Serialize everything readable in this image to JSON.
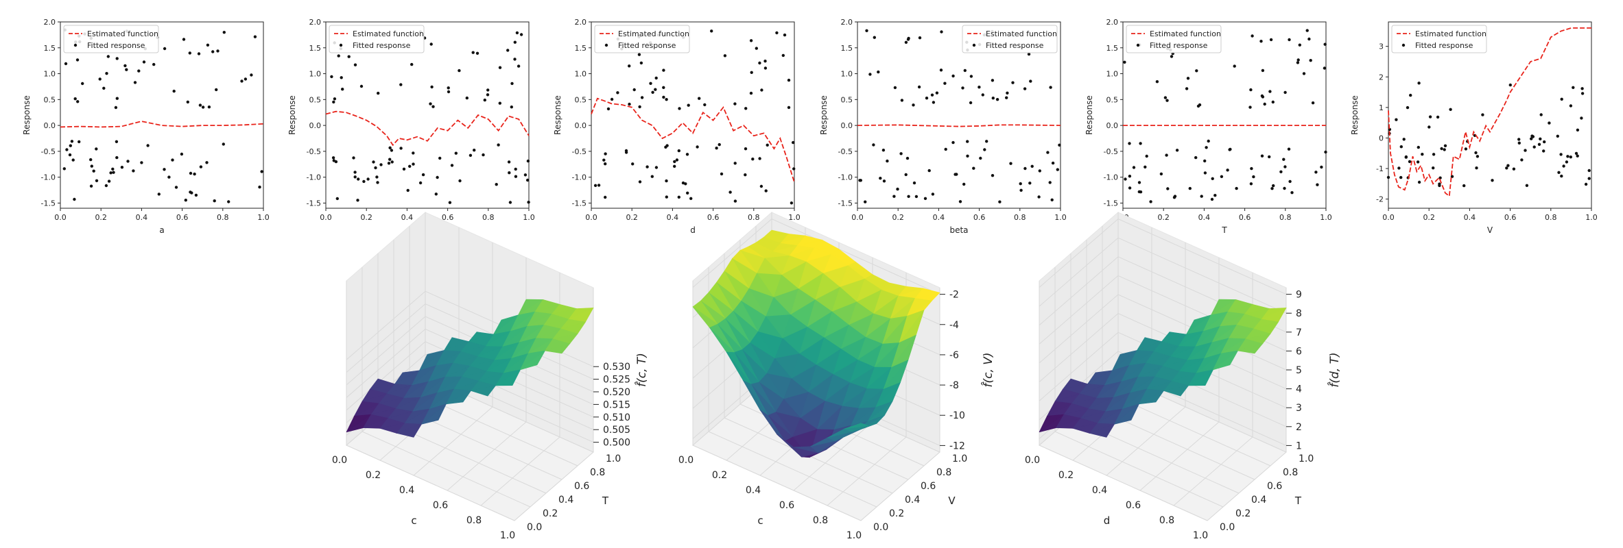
{
  "colors": {
    "estimate": "#e8231a",
    "points": "#111111",
    "axis": "#222222",
    "pane": "#f2f2f2",
    "grid": "#d9d9d9",
    "viridis": [
      "#440154",
      "#46327e",
      "#365c8d",
      "#277f8e",
      "#1fa187",
      "#4ac16d",
      "#a0da39",
      "#fde725"
    ]
  },
  "legend": {
    "estimate_label": "Estimated function",
    "points_label": "Fitted response"
  },
  "chart_data": [
    {
      "type": "scatter",
      "panel": "top-1",
      "xlabel": "a",
      "ylabel": "Response",
      "xlim": [
        0,
        1
      ],
      "ylim": [
        -1.6,
        2.0
      ],
      "legend_loc": "upper left",
      "xticks": [
        "0.0",
        "0.2",
        "0.4",
        "0.6",
        "0.8",
        "1.0"
      ],
      "yticks": [
        "-1.5",
        "-1.0",
        "-0.5",
        "0.0",
        "0.5",
        "1.0",
        "1.5",
        "2.0"
      ],
      "line_x": [
        0,
        0.1,
        0.2,
        0.3,
        0.35,
        0.4,
        0.45,
        0.5,
        0.6,
        0.7,
        0.8,
        0.9,
        1.0
      ],
      "line_y": [
        -0.03,
        -0.02,
        -0.03,
        -0.02,
        0.03,
        0.08,
        0.04,
        0.0,
        -0.02,
        0.0,
        0.0,
        0.01,
        0.03
      ],
      "seed": 11,
      "n_points": 90
    },
    {
      "type": "scatter",
      "panel": "top-2",
      "xlabel": "c",
      "ylabel": "Response",
      "xlim": [
        0,
        1
      ],
      "ylim": [
        -1.6,
        2.0
      ],
      "legend_loc": "upper left",
      "xticks": [
        "0.0",
        "0.2",
        "0.4",
        "0.6",
        "0.8",
        "1.0"
      ],
      "yticks": [
        "-1.5",
        "-1.0",
        "-0.5",
        "0.0",
        "0.5",
        "1.0",
        "1.5",
        "2.0"
      ],
      "line_x": [
        0,
        0.05,
        0.1,
        0.15,
        0.2,
        0.25,
        0.3,
        0.33,
        0.36,
        0.4,
        0.45,
        0.5,
        0.55,
        0.6,
        0.65,
        0.7,
        0.75,
        0.8,
        0.85,
        0.9,
        0.95,
        1.0
      ],
      "line_y": [
        0.22,
        0.27,
        0.25,
        0.18,
        0.1,
        -0.02,
        -0.2,
        -0.38,
        -0.25,
        -0.28,
        -0.22,
        -0.3,
        -0.05,
        -0.1,
        0.1,
        -0.05,
        0.2,
        0.12,
        -0.1,
        0.18,
        0.12,
        -0.2
      ],
      "seed": 23,
      "n_points": 90
    },
    {
      "type": "scatter",
      "panel": "top-3",
      "xlabel": "d",
      "ylabel": "Response",
      "xlim": [
        0,
        1
      ],
      "ylim": [
        -1.6,
        2.0
      ],
      "legend_loc": "upper left",
      "xticks": [
        "0.0",
        "0.2",
        "0.4",
        "0.6",
        "0.8",
        "1.0"
      ],
      "yticks": [
        "-1.5",
        "-1.0",
        "-0.5",
        "0.0",
        "0.5",
        "1.0",
        "1.5",
        "2.0"
      ],
      "line_x": [
        0,
        0.03,
        0.06,
        0.1,
        0.15,
        0.2,
        0.25,
        0.3,
        0.35,
        0.4,
        0.45,
        0.5,
        0.55,
        0.6,
        0.65,
        0.7,
        0.75,
        0.8,
        0.85,
        0.9,
        0.93,
        0.96,
        1.0
      ],
      "line_y": [
        0.22,
        0.52,
        0.48,
        0.42,
        0.4,
        0.35,
        0.1,
        0.0,
        -0.25,
        -0.15,
        0.05,
        -0.15,
        0.25,
        0.1,
        0.35,
        -0.1,
        0.0,
        -0.2,
        -0.15,
        -0.45,
        -0.25,
        -0.6,
        -1.1
      ],
      "seed": 37,
      "n_points": 90
    },
    {
      "type": "scatter",
      "panel": "top-4",
      "xlabel": "beta",
      "ylabel": "Response",
      "xlim": [
        0,
        1
      ],
      "ylim": [
        -1.6,
        2.0
      ],
      "legend_loc": "upper right",
      "xticks": [
        "0.0",
        "0.2",
        "0.4",
        "0.6",
        "0.8",
        "1.0"
      ],
      "yticks": [
        "-1.5",
        "-1.0",
        "-0.5",
        "0.0",
        "0.5",
        "1.0",
        "1.5",
        "2.0"
      ],
      "line_x": [
        0,
        0.2,
        0.4,
        0.5,
        0.6,
        0.7,
        0.8,
        1.0
      ],
      "line_y": [
        0.0,
        0.01,
        -0.01,
        -0.02,
        -0.01,
        0.01,
        0.01,
        0.0
      ],
      "seed": 41,
      "n_points": 90
    },
    {
      "type": "scatter",
      "panel": "top-5",
      "xlabel": "T",
      "ylabel": "Response",
      "xlim": [
        0,
        1
      ],
      "ylim": [
        -1.6,
        2.0
      ],
      "legend_loc": "upper left",
      "xticks": [
        "0.0",
        "0.2",
        "0.4",
        "0.6",
        "0.8",
        "1.0"
      ],
      "yticks": [
        "-1.5",
        "-1.0",
        "-0.5",
        "0.0",
        "0.5",
        "1.0",
        "1.5",
        "2.0"
      ],
      "line_x": [
        0,
        0.5,
        1.0
      ],
      "line_y": [
        0.0,
        0.0,
        0.0
      ],
      "seed": 53,
      "n_points": 90
    },
    {
      "type": "scatter",
      "panel": "top-6",
      "xlabel": "V",
      "ylabel": "Response",
      "xlim": [
        0,
        1
      ],
      "ylim": [
        -2.3,
        3.8
      ],
      "legend_loc": "upper left",
      "xticks": [
        "0.0",
        "0.2",
        "0.4",
        "0.6",
        "0.8",
        "1.0"
      ],
      "yticks": [
        "-2",
        "-1",
        "0",
        "1",
        "2",
        "3"
      ],
      "line_x": [
        0,
        0.01,
        0.03,
        0.05,
        0.08,
        0.1,
        0.12,
        0.14,
        0.16,
        0.18,
        0.2,
        0.22,
        0.25,
        0.28,
        0.3,
        0.32,
        0.35,
        0.38,
        0.4,
        0.42,
        0.45,
        0.48,
        0.5,
        0.55,
        0.58,
        0.6,
        0.65,
        0.7,
        0.75,
        0.8,
        0.85,
        0.9,
        0.95,
        1.0
      ],
      "line_y": [
        0.9,
        -0.5,
        -1.2,
        -1.6,
        -1.7,
        -1.3,
        -0.6,
        -1.1,
        -0.9,
        -1.4,
        -1.2,
        -1.5,
        -1.3,
        -1.8,
        -1.9,
        -0.6,
        -0.7,
        0.2,
        -0.3,
        0.2,
        -0.1,
        0.4,
        0.2,
        0.8,
        1.2,
        1.5,
        2.0,
        2.5,
        2.6,
        3.3,
        3.5,
        3.6,
        3.6,
        3.6
      ],
      "seed": 67,
      "n_points": 80
    },
    {
      "type": "surface3d",
      "panel": "bottom-1",
      "xlabel": "c",
      "ylabel": "T",
      "zlabel": "f̂(c, T)",
      "xticks": [
        "0.0",
        "0.2",
        "0.4",
        "0.6",
        "0.8",
        "1.0"
      ],
      "yticks": [
        "0.0",
        "0.2",
        "0.4",
        "0.6",
        "0.8",
        "1.0"
      ],
      "zticks": [
        "0.500",
        "0.505",
        "0.510",
        "0.515",
        "0.520",
        "0.525",
        "0.530"
      ],
      "zlim": [
        0.5,
        0.53
      ],
      "shape": "ridge"
    },
    {
      "type": "surface3d",
      "panel": "bottom-2",
      "xlabel": "c",
      "ylabel": "V",
      "zlabel": "f̂(c, V)",
      "xticks": [
        "0.0",
        "0.2",
        "0.4",
        "0.6",
        "0.8",
        "1.0"
      ],
      "yticks": [
        "0.0",
        "0.2",
        "0.4",
        "0.6",
        "0.8",
        "1.0"
      ],
      "zticks": [
        "-2",
        "-4",
        "-6",
        "-8",
        "-10",
        "-12"
      ],
      "zlim": [
        -13,
        -1
      ],
      "shape": "bowl"
    },
    {
      "type": "surface3d",
      "panel": "bottom-3",
      "xlabel": "d",
      "ylabel": "T",
      "zlabel": "f̂(d, T)",
      "xticks": [
        "0.0",
        "0.2",
        "0.4",
        "0.6",
        "0.8",
        "1.0"
      ],
      "yticks": [
        "0.0",
        "0.2",
        "0.4",
        "0.6",
        "0.8",
        "1.0"
      ],
      "zticks": [
        "1",
        "2",
        "3",
        "4",
        "5",
        "6",
        "7",
        "8",
        "9"
      ],
      "zlim": [
        0.5,
        9.5
      ],
      "shape": "ridge"
    }
  ]
}
